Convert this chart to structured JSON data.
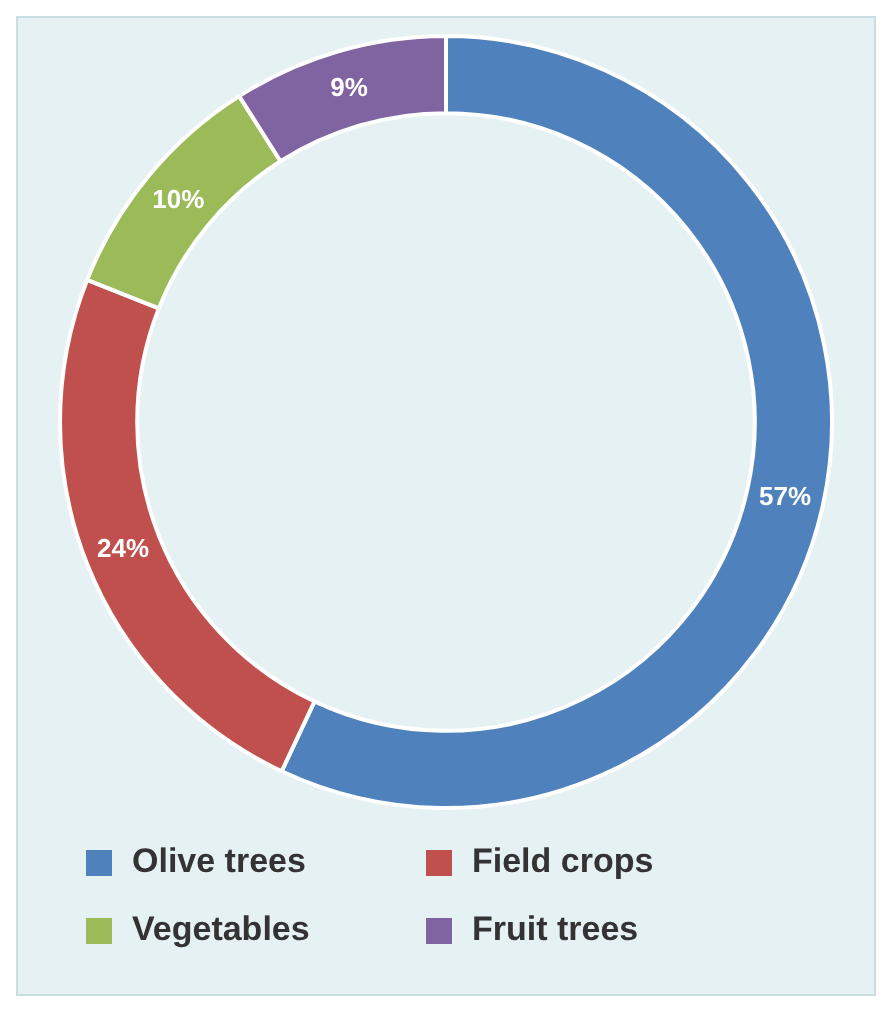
{
  "chart_data": {
    "type": "donut",
    "categories": [
      "Olive trees",
      "Field crops",
      "Vegetables",
      "Fruit trees"
    ],
    "values": [
      57,
      24,
      10,
      9
    ],
    "value_labels": [
      "57%",
      "24%",
      "10%",
      "9%"
    ],
    "colors": [
      "#4f81bd",
      "#c0504d",
      "#9bbb59",
      "#8064a2"
    ],
    "legend": "bottom"
  }
}
